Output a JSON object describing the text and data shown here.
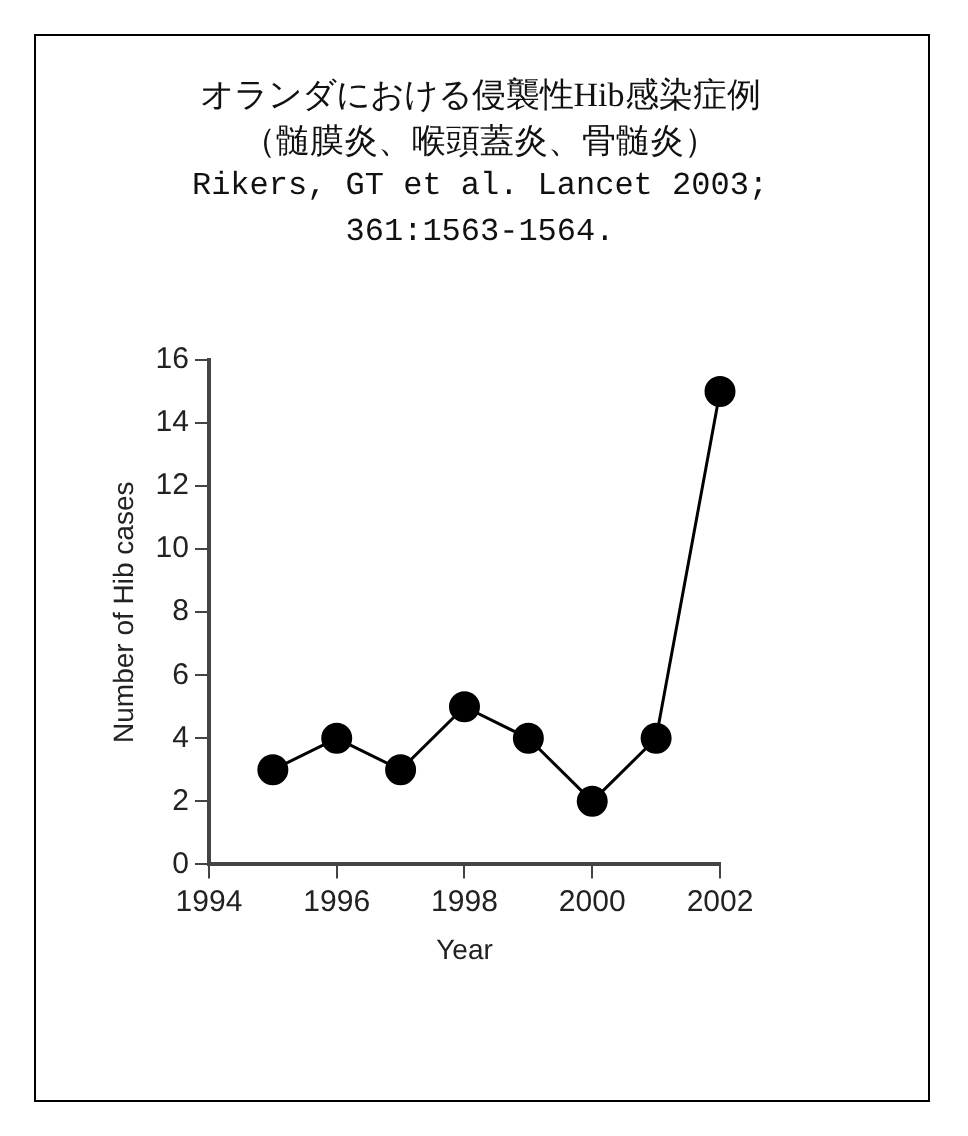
{
  "chart_data": {
    "type": "line",
    "title": "オランダにおける侵襲性Hib感染症例",
    "subtitle": "（髄膜炎、喉頭蓋炎、骨髄炎）",
    "annotations": [
      "Rikers, GT et al. Lancet 2003; 361:1563-1564."
    ],
    "xlabel": "Year",
    "ylabel": "Number of Hib cases",
    "x": [
      1995,
      1996,
      1997,
      1998,
      1999,
      2000,
      2001,
      2002
    ],
    "series": [
      {
        "color": "#000000",
        "values": [
          3,
          4,
          3,
          5,
          4,
          2,
          4,
          15
        ]
      }
    ],
    "xlim": [
      1994,
      2002
    ],
    "xticks": [
      1994,
      1996,
      1998,
      2000,
      2002
    ],
    "ylim": [
      0,
      16
    ],
    "yticks": [
      0,
      2,
      4,
      6,
      8,
      10,
      12,
      14,
      16
    ],
    "grid": false,
    "legend": false,
    "marker": "circle",
    "line_style": "solid"
  }
}
